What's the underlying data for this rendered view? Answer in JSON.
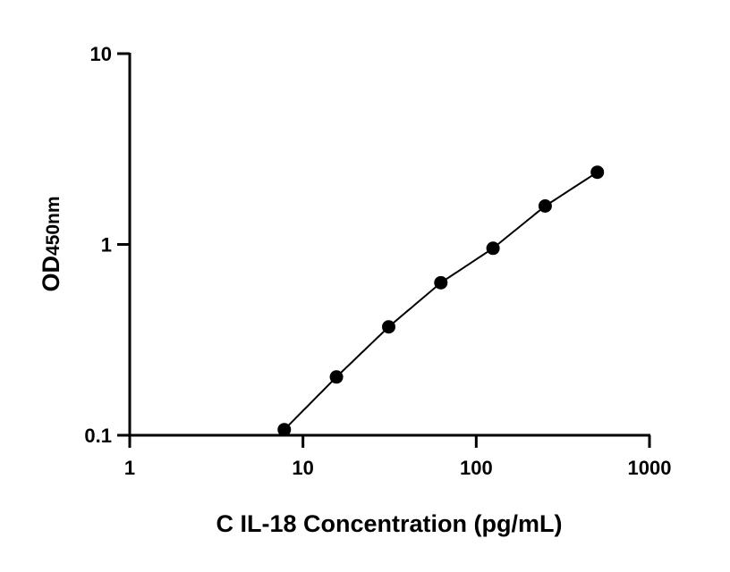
{
  "chart_data": {
    "type": "scatter",
    "title": "",
    "xlabel": "C IL-18 Concentration (pg/mL)",
    "ylabel_main": "OD",
    "ylabel_sub": "450nm",
    "x_scale": "log",
    "y_scale": "log",
    "xlim": [
      1,
      1000
    ],
    "ylim": [
      0.1,
      10
    ],
    "x_ticks": [
      1,
      10,
      100,
      1000
    ],
    "x_tick_labels": [
      "1",
      "10",
      "100",
      "1000"
    ],
    "y_ticks": [
      0.1,
      1,
      10
    ],
    "y_tick_labels": [
      "0.1",
      "1",
      "10"
    ],
    "grid": false,
    "points": {
      "x": [
        7.8,
        15.6,
        31.25,
        62.5,
        125,
        250,
        500
      ],
      "y": [
        0.107,
        0.202,
        0.37,
        0.63,
        0.955,
        1.59,
        2.39
      ]
    },
    "fit_curve": true,
    "color": "#000000"
  }
}
